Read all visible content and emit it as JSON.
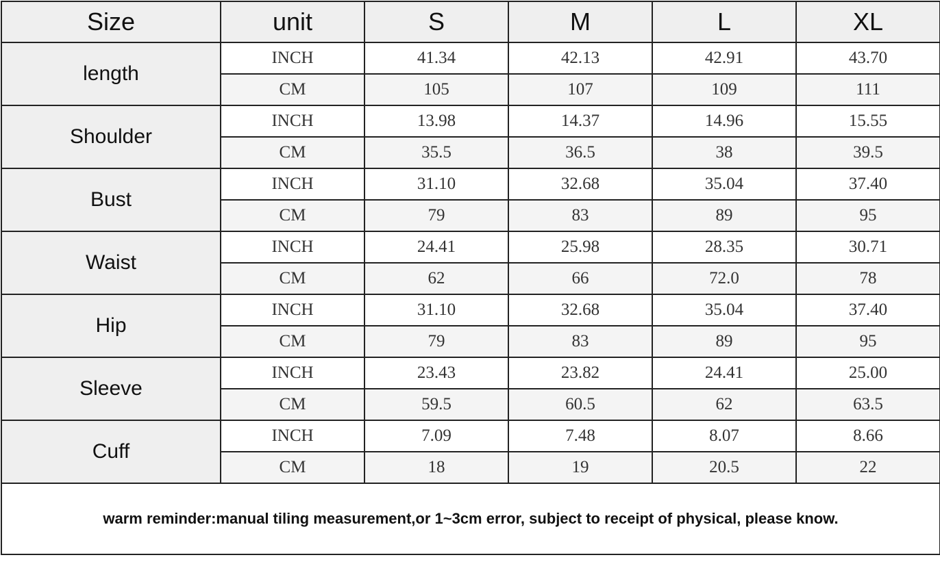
{
  "table": {
    "header": [
      "Size",
      "unit",
      "S",
      "M",
      "L",
      "XL"
    ],
    "groups": [
      {
        "name": "length",
        "rows": [
          {
            "unit": "INCH",
            "values": [
              "41.34",
              "42.13",
              "42.91",
              "43.70"
            ]
          },
          {
            "unit": "CM",
            "values": [
              "105",
              "107",
              "109",
              "111"
            ]
          }
        ]
      },
      {
        "name": "Shoulder",
        "rows": [
          {
            "unit": "INCH",
            "values": [
              "13.98",
              "14.37",
              "14.96",
              "15.55"
            ]
          },
          {
            "unit": "CM",
            "values": [
              "35.5",
              "36.5",
              "38",
              "39.5"
            ]
          }
        ]
      },
      {
        "name": "Bust",
        "rows": [
          {
            "unit": "INCH",
            "values": [
              "31.10",
              "32.68",
              "35.04",
              "37.40"
            ]
          },
          {
            "unit": "CM",
            "values": [
              "79",
              "83",
              "89",
              "95"
            ]
          }
        ]
      },
      {
        "name": "Waist",
        "rows": [
          {
            "unit": "INCH",
            "values": [
              "24.41",
              "25.98",
              "28.35",
              "30.71"
            ]
          },
          {
            "unit": "CM",
            "values": [
              "62",
              "66",
              "72.0",
              "78"
            ]
          }
        ]
      },
      {
        "name": "Hip",
        "rows": [
          {
            "unit": "INCH",
            "values": [
              "31.10",
              "32.68",
              "35.04",
              "37.40"
            ]
          },
          {
            "unit": "CM",
            "values": [
              "79",
              "83",
              "89",
              "95"
            ]
          }
        ]
      },
      {
        "name": "Sleeve",
        "rows": [
          {
            "unit": "INCH",
            "values": [
              "23.43",
              "23.82",
              "24.41",
              "25.00"
            ]
          },
          {
            "unit": "CM",
            "values": [
              "59.5",
              "60.5",
              "62",
              "63.5"
            ]
          }
        ]
      },
      {
        "name": "Cuff",
        "rows": [
          {
            "unit": "INCH",
            "values": [
              "7.09",
              "7.48",
              "8.07",
              "8.66"
            ]
          },
          {
            "unit": "CM",
            "values": [
              "18",
              "19",
              "20.5",
              "22"
            ]
          }
        ]
      }
    ],
    "note": "warm reminder:manual tiling measurement,or 1~3cm error, subject to receipt of physical, please know."
  }
}
